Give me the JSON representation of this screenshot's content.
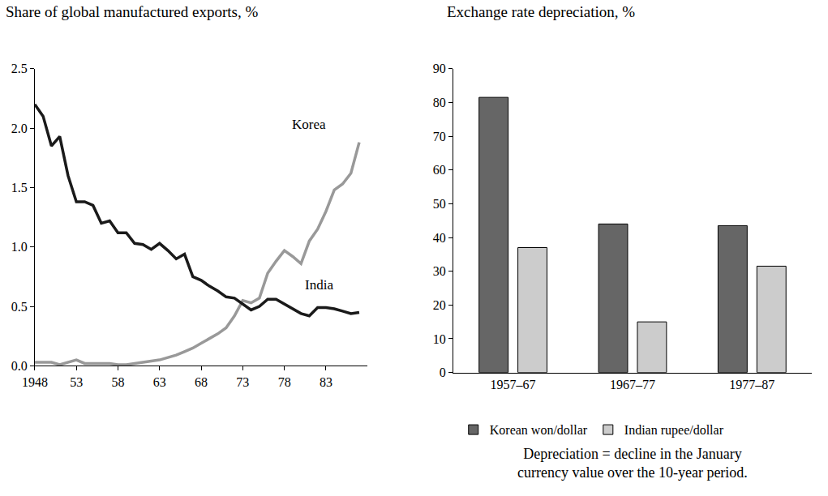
{
  "chart_data": [
    {
      "type": "line",
      "title": "Share of global manufactured exports, %",
      "x": [
        1948,
        1949,
        1950,
        1951,
        1952,
        1953,
        1954,
        1955,
        1956,
        1957,
        1958,
        1959,
        1960,
        1961,
        1962,
        1963,
        1964,
        1965,
        1966,
        1967,
        1968,
        1969,
        1970,
        1971,
        1972,
        1973,
        1974,
        1975,
        1976,
        1977,
        1978,
        1979,
        1980,
        1981,
        1982,
        1983,
        1984,
        1985,
        1986,
        1987
      ],
      "series": [
        {
          "name": "Korea",
          "color": "#999999",
          "values": [
            0.03,
            0.03,
            0.03,
            0.01,
            0.03,
            0.05,
            0.02,
            0.02,
            0.02,
            0.02,
            0.01,
            0.01,
            0.02,
            0.03,
            0.04,
            0.05,
            0.07,
            0.09,
            0.12,
            0.15,
            0.19,
            0.23,
            0.27,
            0.32,
            0.42,
            0.55,
            0.53,
            0.57,
            0.78,
            0.88,
            0.97,
            0.92,
            0.86,
            1.05,
            1.15,
            1.3,
            1.48,
            1.53,
            1.62,
            1.88
          ]
        },
        {
          "name": "India",
          "color": "#1a1a1a",
          "values": [
            2.2,
            2.1,
            1.85,
            1.93,
            1.6,
            1.38,
            1.38,
            1.35,
            1.2,
            1.22,
            1.12,
            1.12,
            1.03,
            1.02,
            0.98,
            1.03,
            0.97,
            0.9,
            0.94,
            0.75,
            0.72,
            0.67,
            0.63,
            0.58,
            0.57,
            0.52,
            0.47,
            0.5,
            0.56,
            0.56,
            0.52,
            0.48,
            0.44,
            0.42,
            0.49,
            0.49,
            0.48,
            0.46,
            0.44,
            0.45
          ]
        }
      ],
      "xlim": [
        1948,
        1988
      ],
      "xticks": [
        1948,
        {
          "value": 1953,
          "label": "53"
        },
        {
          "value": 1958,
          "label": "58"
        },
        {
          "value": 1963,
          "label": "63"
        },
        {
          "value": 1968,
          "label": "68"
        },
        {
          "value": 1973,
          "label": "73"
        },
        {
          "value": 1978,
          "label": "78"
        },
        {
          "value": 1983,
          "label": "83"
        }
      ],
      "ylim": [
        0,
        2.5
      ],
      "yticks": [
        {
          "value": 0,
          "label": "0.0"
        },
        {
          "value": 0.5,
          "label": "0.5"
        },
        {
          "value": 1,
          "label": "1.0"
        },
        {
          "value": 1.5,
          "label": "1.5"
        },
        {
          "value": 2,
          "label": "2.0"
        },
        {
          "value": 2.5,
          "label": "2.5"
        }
      ],
      "grid": false
    },
    {
      "type": "bar",
      "title": "Exchange rate depreciation, %",
      "categories": [
        "1957–67",
        "1967–77",
        "1977–87"
      ],
      "series": [
        {
          "name": "Korean won/dollar",
          "color": "#666666",
          "values": [
            81.5,
            44,
            43.5
          ]
        },
        {
          "name": "Indian rupee/dollar",
          "color": "#cccccc",
          "values": [
            37,
            15,
            31.5
          ]
        }
      ],
      "ylim": [
        0,
        90
      ],
      "yticks": [
        0,
        10,
        20,
        30,
        40,
        50,
        60,
        70,
        80,
        90
      ],
      "grid": false,
      "legend": "bottom",
      "note": [
        "Depreciation = decline in the January",
        "currency value over the 10-year period."
      ]
    }
  ]
}
